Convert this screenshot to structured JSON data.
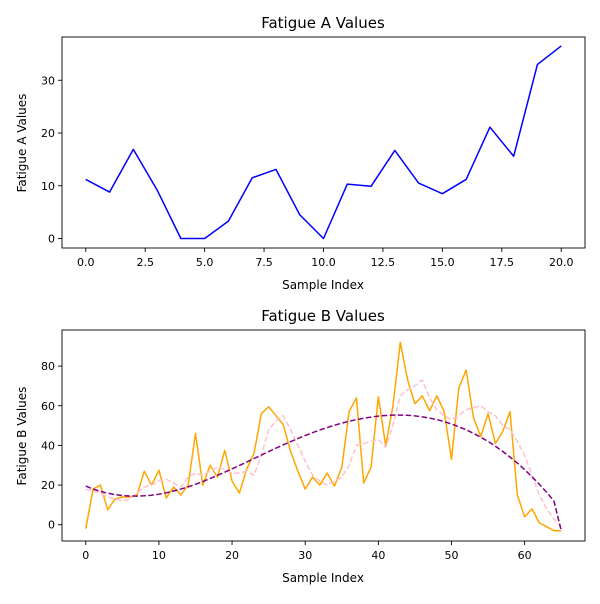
{
  "chart_data": [
    {
      "type": "line",
      "title": "Fatigue A Values",
      "xlabel": "Sample Index",
      "ylabel": "Fatigue A Values",
      "xlim": [
        -1,
        21
      ],
      "ylim": [
        -1.8,
        38.2
      ],
      "xticks": [
        0,
        2.5,
        5,
        7.5,
        10,
        12.5,
        15,
        17.5,
        20
      ],
      "xtick_labels": [
        "0.0",
        "2.5",
        "5.0",
        "7.5",
        "10.0",
        "12.5",
        "15.0",
        "17.5",
        "20.0"
      ],
      "yticks": [
        0,
        10,
        20,
        30
      ],
      "ytick_labels": [
        "0",
        "10",
        "20",
        "30"
      ],
      "grid": false,
      "series": [
        {
          "color": "#0000ff",
          "style": "solid",
          "x": [
            0,
            1,
            2,
            3,
            4,
            5,
            6,
            7,
            8,
            9,
            10,
            11,
            12,
            13,
            14,
            15,
            16,
            17,
            18,
            19,
            20
          ],
          "y": [
            11.2,
            8.8,
            16.9,
            9.2,
            0.0,
            0.0,
            3.3,
            11.5,
            13.1,
            4.5,
            0.0,
            10.3,
            9.9,
            16.7,
            10.5,
            8.5,
            11.2,
            21.1,
            15.6,
            33.0,
            36.5
          ]
        }
      ]
    },
    {
      "type": "line",
      "title": "Fatigue B Values",
      "xlabel": "Sample Index",
      "ylabel": "Fatigue B Values",
      "xlim": [
        -3.25,
        68.25
      ],
      "ylim": [
        -8.2,
        98.2
      ],
      "xticks": [
        0,
        10,
        20,
        30,
        40,
        50,
        60
      ],
      "xtick_labels": [
        "0",
        "10",
        "20",
        "30",
        "40",
        "50",
        "60"
      ],
      "yticks": [
        0,
        20,
        40,
        60,
        80
      ],
      "ytick_labels": [
        "0",
        "20",
        "40",
        "60",
        "80"
      ],
      "grid": false,
      "series": [
        {
          "color": "#ffa500",
          "style": "solid",
          "x": [
            0,
            1,
            2,
            3,
            4,
            5,
            6,
            7,
            8,
            9,
            10,
            11,
            12,
            13,
            14,
            15,
            16,
            17,
            18,
            19,
            20,
            21,
            22,
            23,
            24,
            25,
            26,
            27,
            28,
            29,
            30,
            31,
            32,
            33,
            34,
            35,
            36,
            37,
            38,
            39,
            40,
            41,
            42,
            43,
            44,
            45,
            46,
            47,
            48,
            49,
            50,
            51,
            52,
            53,
            54,
            55,
            56,
            57,
            58,
            59,
            60,
            61,
            62,
            63,
            64,
            65
          ],
          "y": [
            -2,
            18,
            20,
            7.5,
            13,
            14,
            14,
            15,
            27,
            20,
            27.5,
            13.5,
            19,
            15,
            20,
            46,
            20,
            30,
            24,
            37.5,
            22,
            16,
            28,
            36,
            56,
            59.5,
            55,
            50.5,
            37,
            27,
            18,
            24,
            20,
            26,
            19.5,
            29,
            57,
            64,
            21,
            29,
            64.5,
            40,
            60,
            92,
            73,
            61,
            65,
            57.5,
            65,
            57,
            33,
            69,
            78,
            54,
            44.5,
            56,
            41,
            47,
            57,
            15,
            4,
            8,
            1,
            -1,
            -3,
            -3
          ]
        },
        {
          "color": "#ffc0cb",
          "style": "dashed",
          "x": [
            0,
            1,
            2,
            3,
            4,
            5,
            6,
            7,
            8,
            9,
            10,
            11,
            12,
            13,
            14,
            15,
            16,
            17,
            18,
            19,
            20,
            21,
            22,
            23,
            24,
            25,
            26,
            27,
            28,
            29,
            30,
            31,
            32,
            33,
            34,
            35,
            36,
            37,
            38,
            39,
            40,
            41,
            42,
            43,
            44,
            45,
            46,
            47,
            48,
            49,
            50,
            51,
            52,
            53,
            54,
            55,
            56,
            57,
            58,
            59,
            60,
            61,
            62,
            63,
            64,
            65
          ],
          "y": [
            18,
            17,
            16,
            14,
            13,
            12,
            13,
            16,
            19,
            20,
            22,
            23,
            21,
            19,
            24,
            26,
            25,
            27,
            29,
            28,
            26,
            26,
            27,
            25,
            35,
            48,
            52,
            55,
            48,
            40,
            32,
            25,
            22,
            20,
            22,
            24,
            30,
            40,
            41,
            42,
            43,
            39,
            50,
            65,
            68,
            70,
            73,
            64,
            58,
            55,
            53,
            55,
            58,
            59,
            60,
            57,
            55,
            50,
            48,
            42,
            35,
            25,
            15,
            8,
            3,
            -1
          ]
        },
        {
          "color": "#800080",
          "style": "dashed",
          "x": [
            0,
            1,
            2,
            3,
            4,
            5,
            6,
            7,
            8,
            9,
            10,
            11,
            12,
            13,
            14,
            15,
            16,
            17,
            18,
            19,
            20,
            21,
            22,
            23,
            24,
            25,
            26,
            27,
            28,
            29,
            30,
            31,
            32,
            33,
            34,
            35,
            36,
            37,
            38,
            39,
            40,
            41,
            42,
            43,
            44,
            45,
            46,
            47,
            48,
            49,
            50,
            51,
            52,
            53,
            54,
            55,
            56,
            57,
            58,
            59,
            60,
            61,
            62,
            63,
            64,
            65
          ],
          "y": [
            19.5,
            18,
            16.8,
            15.9,
            15.2,
            14.7,
            14.5,
            14.4,
            14.6,
            14.9,
            15.4,
            16.1,
            17,
            18,
            19.1,
            20.4,
            21.8,
            23.3,
            24.9,
            26.5,
            28.2,
            29.9,
            31.6,
            33.4,
            35.1,
            36.9,
            38.6,
            40.3,
            41.9,
            43.5,
            45,
            46.4,
            47.8,
            49,
            50.2,
            51.2,
            52.2,
            53,
            53.7,
            54.3,
            54.8,
            55.1,
            55.3,
            55.3,
            55.2,
            54.9,
            54.4,
            53.8,
            53,
            52,
            50.8,
            49.4,
            47.9,
            46.1,
            44.1,
            42,
            39.6,
            37,
            34.1,
            31.1,
            27.8,
            24.2,
            20.4,
            16.4,
            12,
            -3
          ]
        }
      ]
    }
  ]
}
